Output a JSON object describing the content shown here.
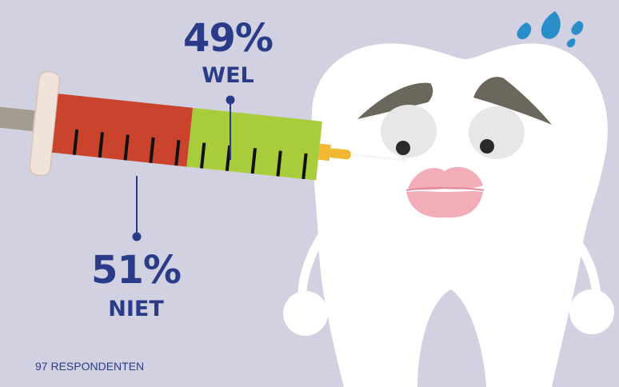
{
  "chart_data": {
    "type": "bar",
    "categories": [
      "WEL",
      "NIET"
    ],
    "values": [
      49,
      51
    ],
    "value_labels": [
      "49%",
      "51%"
    ],
    "unit": "%"
  },
  "footnote": "97 RESPONDENTEN",
  "colors": {
    "background": "#d2d1e1",
    "wel": "#a9cd3a",
    "niet": "#c9432d",
    "text": "#2a3c87",
    "tooth": "#ffffff",
    "drop": "#2a8fc8"
  },
  "icons": [
    "syringe-icon",
    "tooth-icon",
    "sweat-drops-icon"
  ]
}
